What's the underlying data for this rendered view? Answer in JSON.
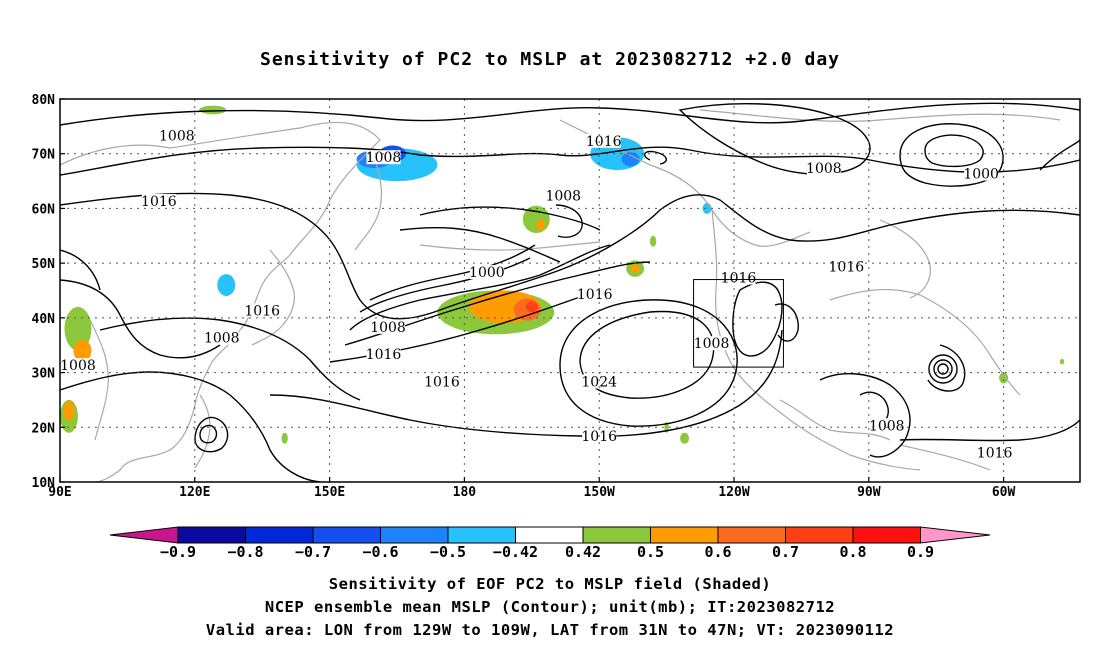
{
  "title": "Sensitivity of PC2 to MSLP at 2023082712 +2.0 day",
  "map": {
    "lat_labels": [
      "80N",
      "70N",
      "60N",
      "50N",
      "40N",
      "30N",
      "20N",
      "10N"
    ],
    "lon_labels": [
      "90E",
      "120E",
      "150E",
      "180",
      "150W",
      "120W",
      "90W",
      "60W"
    ],
    "lon_range": [
      90,
      317
    ],
    "lat_range": [
      10,
      80
    ],
    "valid_box": {
      "lon_west": -129,
      "lon_east": -109,
      "lat_south": 31,
      "lat_north": 47
    },
    "contour_labels": [
      {
        "text": "1008",
        "lon": 116,
        "lat": 73
      },
      {
        "text": "1008",
        "lon": 162,
        "lat": 69
      },
      {
        "text": "1016",
        "lon": 211,
        "lat": 72
      },
      {
        "text": "1016",
        "lon": 112,
        "lat": 61
      },
      {
        "text": "1008",
        "lon": 202,
        "lat": 62
      },
      {
        "text": "1008",
        "lon": 260,
        "lat": 67
      },
      {
        "text": "1000",
        "lon": 295,
        "lat": 66
      },
      {
        "text": "1016",
        "lon": 265,
        "lat": 49
      },
      {
        "text": "1000",
        "lon": 185,
        "lat": 48
      },
      {
        "text": "1016",
        "lon": 209,
        "lat": 44
      },
      {
        "text": "1016",
        "lon": 241,
        "lat": 47
      },
      {
        "text": "1016",
        "lon": 135,
        "lat": 41
      },
      {
        "text": "1008",
        "lon": 163,
        "lat": 38
      },
      {
        "text": "1008",
        "lon": 126,
        "lat": 36
      },
      {
        "text": "1016",
        "lon": 162,
        "lat": 33
      },
      {
        "text": "1008",
        "lon": 94,
        "lat": 31
      },
      {
        "text": "1016",
        "lon": 175,
        "lat": 28
      },
      {
        "text": "1024",
        "lon": 210,
        "lat": 28
      },
      {
        "text": "1008",
        "lon": 235,
        "lat": 35
      },
      {
        "text": "1016",
        "lon": 210,
        "lat": 18
      },
      {
        "text": "1008",
        "lon": 274,
        "lat": 20
      },
      {
        "text": "1016",
        "lon": 298,
        "lat": 15
      }
    ]
  },
  "colorbar": {
    "labels": [
      "-0.9",
      "-0.8",
      "-0.7",
      "-0.6",
      "-0.5",
      "-0.42",
      "0.42",
      "0.5",
      "0.6",
      "0.7",
      "0.8",
      "0.9"
    ],
    "colors": [
      "#0a0aa0",
      "#0028d8",
      "#1450f0",
      "#1e82fa",
      "#28c2fa",
      "#ffffff",
      "#8cc83c",
      "#ff9c00",
      "#ff6a1e",
      "#ff4014",
      "#ff1010"
    ],
    "low_end_color": "#c8168c",
    "high_end_color": "#ff96c8"
  },
  "shading_blobs": [
    {
      "lon": 165,
      "lat": 68,
      "rx": 9,
      "ry": 3,
      "color": "#28c2fa"
    },
    {
      "lon": 160,
      "lat": 69,
      "rx": 4,
      "ry": 1.6,
      "color": "#1e82fa"
    },
    {
      "lon": 164,
      "lat": 70,
      "rx": 3,
      "ry": 1.5,
      "color": "#1450f0"
    },
    {
      "lon": 214,
      "lat": 70,
      "rx": 6,
      "ry": 3,
      "color": "#28c2fa"
    },
    {
      "lon": 217,
      "lat": 69,
      "rx": 2,
      "ry": 1.3,
      "color": "#1e82fa"
    },
    {
      "lon": 127,
      "lat": 46,
      "rx": 2,
      "ry": 2,
      "color": "#28c2fa"
    },
    {
      "lon": 234,
      "lat": 60,
      "rx": 1,
      "ry": 1,
      "color": "#28c2fa"
    },
    {
      "lon": 187,
      "lat": 41,
      "rx": 13,
      "ry": 4,
      "color": "#8cc83c"
    },
    {
      "lon": 189,
      "lat": 42,
      "rx": 8,
      "ry": 3,
      "color": "#ff9c00"
    },
    {
      "lon": 194,
      "lat": 41.5,
      "rx": 3,
      "ry": 2,
      "color": "#ff6a1e"
    },
    {
      "lon": 195,
      "lat": 42,
      "rx": 1.3,
      "ry": 1,
      "color": "#ff4014"
    },
    {
      "lon": 196,
      "lat": 58,
      "rx": 3,
      "ry": 2.5,
      "color": "#8cc83c"
    },
    {
      "lon": 197,
      "lat": 57,
      "rx": 1,
      "ry": 1,
      "color": "#ff9c00"
    },
    {
      "lon": 218,
      "lat": 49,
      "rx": 2,
      "ry": 1.5,
      "color": "#8cc83c"
    },
    {
      "lon": 218,
      "lat": 49,
      "rx": 1,
      "ry": 0.8,
      "color": "#ff9c00"
    },
    {
      "lon": 222,
      "lat": 54,
      "rx": 0.7,
      "ry": 1,
      "color": "#8cc83c"
    },
    {
      "lon": 124,
      "lat": 78,
      "rx": 3,
      "ry": 0.8,
      "color": "#8cc83c"
    },
    {
      "lon": 94,
      "lat": 38,
      "rx": 3,
      "ry": 4,
      "color": "#8cc83c"
    },
    {
      "lon": 95,
      "lat": 34,
      "rx": 2,
      "ry": 2,
      "color": "#ff9c00"
    },
    {
      "lon": 92,
      "lat": 22,
      "rx": 2,
      "ry": 3,
      "color": "#8cc83c"
    },
    {
      "lon": 92,
      "lat": 23,
      "rx": 1.2,
      "ry": 1.8,
      "color": "#ff9c00"
    },
    {
      "lon": 140,
      "lat": 18,
      "rx": 0.7,
      "ry": 1,
      "color": "#8cc83c"
    },
    {
      "lon": 225,
      "lat": 20,
      "rx": 0.5,
      "ry": 1,
      "color": "#8cc83c"
    },
    {
      "lon": 229,
      "lat": 18,
      "rx": 1,
      "ry": 1,
      "color": "#8cc83c"
    },
    {
      "lon": 300,
      "lat": 29,
      "rx": 1,
      "ry": 1,
      "color": "#8cc83c"
    },
    {
      "lon": 313,
      "lat": 32,
      "rx": 0.5,
      "ry": 0.5,
      "color": "#8cc83c"
    }
  ],
  "footer": [
    "Sensitivity of EOF PC2 to MSLP field (Shaded)",
    "NCEP ensemble mean MSLP (Contour); unit(mb); IT:2023082712",
    "Valid area: LON from 129W to 109W, LAT from 31N to 47N; VT: 2023090112"
  ]
}
